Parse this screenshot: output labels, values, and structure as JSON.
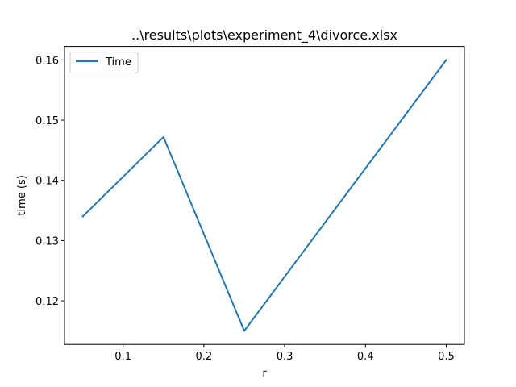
{
  "chart_data": {
    "type": "line",
    "title": "..\\results\\plots\\experiment_4\\divorce.xlsx",
    "xlabel": "r",
    "ylabel": "time (s)",
    "xlim": [
      0.0275,
      0.5225
    ],
    "ylim": [
      0.11275,
      0.16225
    ],
    "x_ticks": [
      0.1,
      0.2,
      0.3,
      0.4,
      0.5
    ],
    "x_tick_labels": [
      "0.1",
      "0.2",
      "0.3",
      "0.4",
      "0.5"
    ],
    "y_ticks": [
      0.12,
      0.13,
      0.14,
      0.15,
      0.16
    ],
    "y_tick_labels": [
      "0.12",
      "0.13",
      "0.14",
      "0.15",
      "0.16"
    ],
    "grid": false,
    "legend_position": "upper left",
    "series": [
      {
        "name": "Time",
        "color": "#1f77b4",
        "x": [
          0.05,
          0.15,
          0.25,
          0.5
        ],
        "y": [
          0.134,
          0.1472,
          0.115,
          0.16
        ]
      }
    ]
  }
}
